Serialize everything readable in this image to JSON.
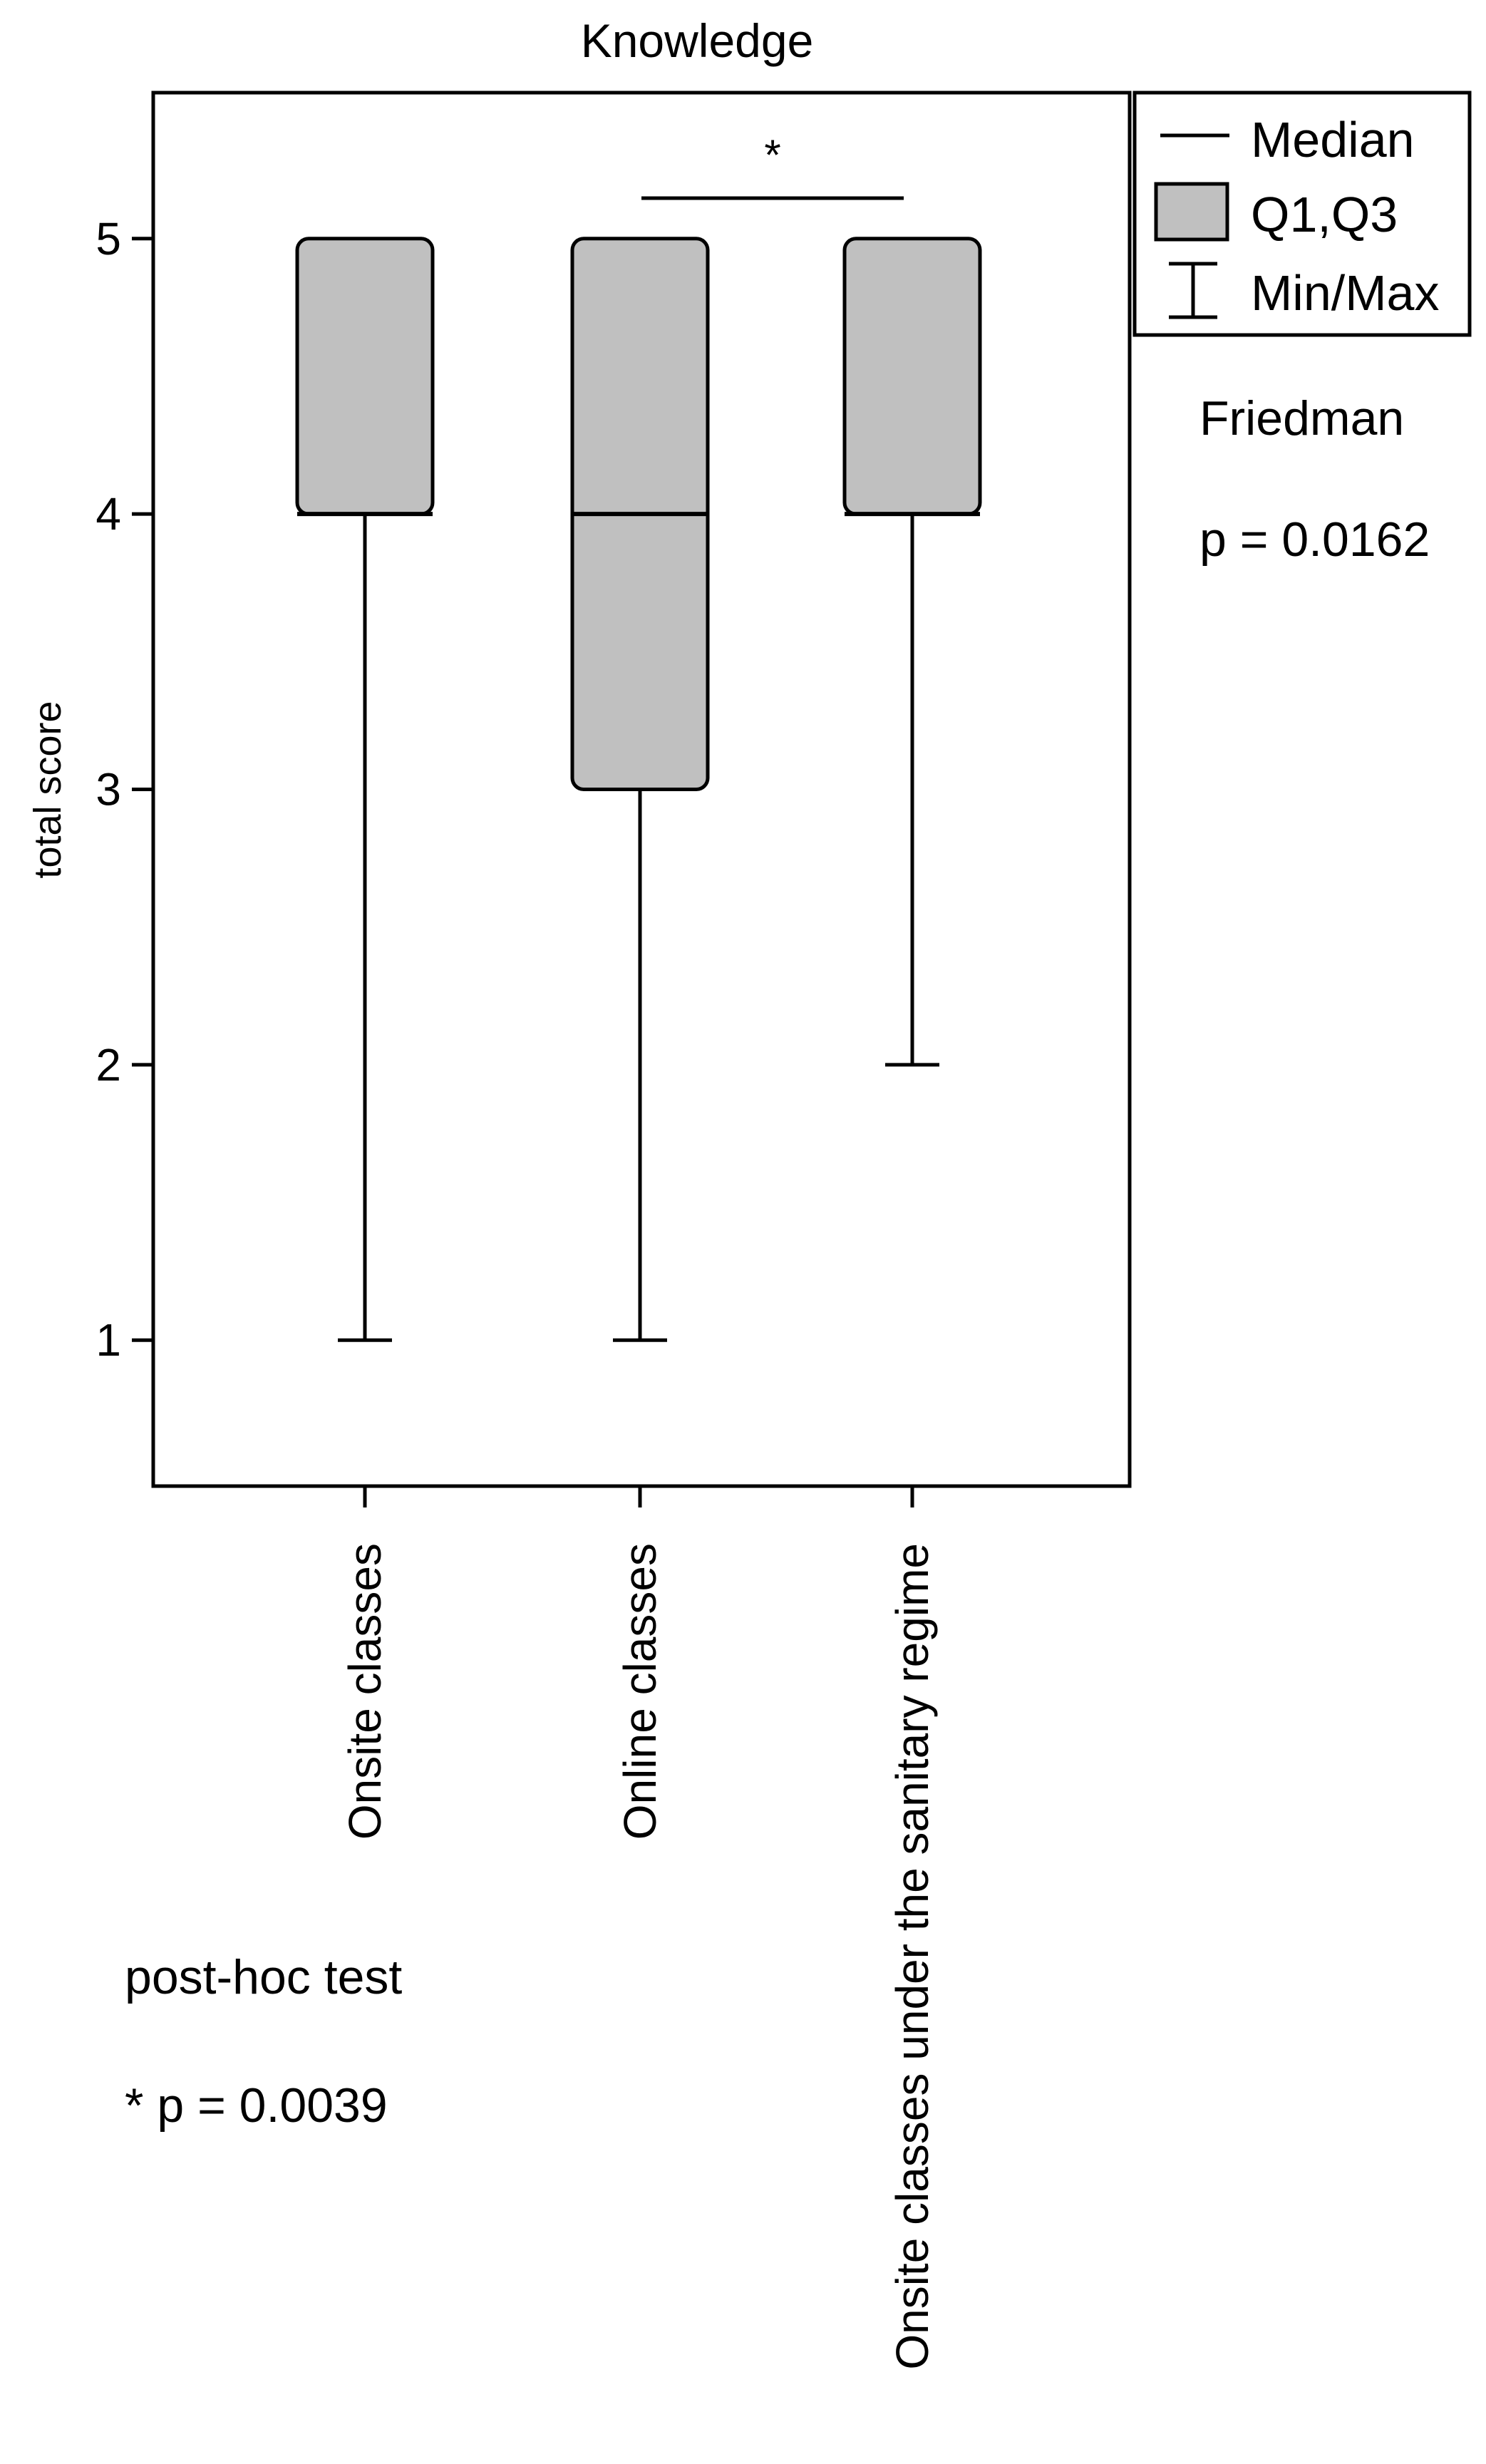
{
  "chart_data": {
    "type": "boxplot",
    "title": "Knowledge",
    "ylabel": "total score",
    "ylim": [
      0.47,
      5.53
    ],
    "yticks": [
      1,
      2,
      3,
      4,
      5
    ],
    "categories": [
      "Onsite classes",
      "Online classes",
      "Onsite classes under the sanitary regime"
    ],
    "boxes": [
      {
        "min": 1,
        "q1": 4,
        "median": 4,
        "q3": 5,
        "max": 5
      },
      {
        "min": 1,
        "q1": 3,
        "median": 4,
        "q3": 5,
        "max": 5
      },
      {
        "min": 2,
        "q1": 4,
        "median": 4,
        "q3": 5,
        "max": 5
      }
    ],
    "significance": {
      "from": 1,
      "to": 2,
      "label": "*"
    },
    "legend": {
      "position": "top-right",
      "items": [
        {
          "key": "median",
          "label": "Median"
        },
        {
          "key": "box",
          "label": "Q1,Q3"
        },
        {
          "key": "whisker",
          "label": "Min/Max"
        }
      ]
    },
    "colors": {
      "box_fill": "#c0c0c0",
      "line": "#000000"
    }
  },
  "annotations": {
    "friedman_label": "Friedman",
    "friedman_p": "p = 0.0162",
    "posthoc_label": "post-hoc test",
    "posthoc_p": "* p = 0.0039"
  }
}
